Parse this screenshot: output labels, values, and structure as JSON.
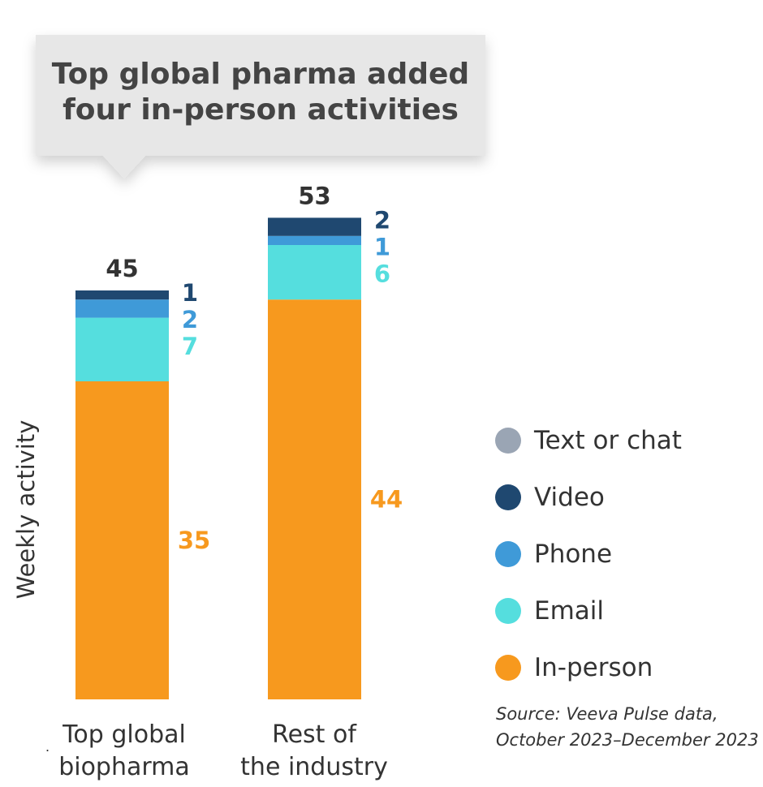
{
  "chart_data": {
    "type": "bar",
    "stacked": true,
    "title": "Top global pharma added four in-person activities",
    "ylabel": "Weekly activity",
    "categories": [
      "Top global biopharma",
      "Rest of the industry"
    ],
    "category_lines": [
      [
        "Top global",
        "biopharma"
      ],
      [
        "Rest of",
        "the industry"
      ]
    ],
    "totals": [
      45,
      53
    ],
    "series": [
      {
        "name": "In-person",
        "color": "#F7991E",
        "values": [
          35,
          44
        ]
      },
      {
        "name": "Email",
        "color": "#55DEDE",
        "values": [
          7,
          6
        ]
      },
      {
        "name": "Phone",
        "color": "#3F9AD8",
        "values": [
          2,
          1
        ]
      },
      {
        "name": "Video",
        "color": "#1F4870",
        "values": [
          1,
          2
        ]
      },
      {
        "name": "Text or chat",
        "color": "#9AA5B4",
        "values": [
          0,
          0
        ]
      }
    ],
    "label_colors": {
      "Video": "#1F4870",
      "Phone": "#3F9AD8",
      "Email": "#55DEDE",
      "In-person": "#F7991E"
    },
    "legend_order": [
      "Text or chat",
      "Video",
      "Phone",
      "Email",
      "In-person"
    ],
    "legend_position": "right",
    "grid": false,
    "ylim": [
      0,
      53
    ]
  },
  "source": {
    "line1": "Source: Veeva Pulse data,",
    "line2": "October 2023–December 2023"
  },
  "stray_mark": "."
}
